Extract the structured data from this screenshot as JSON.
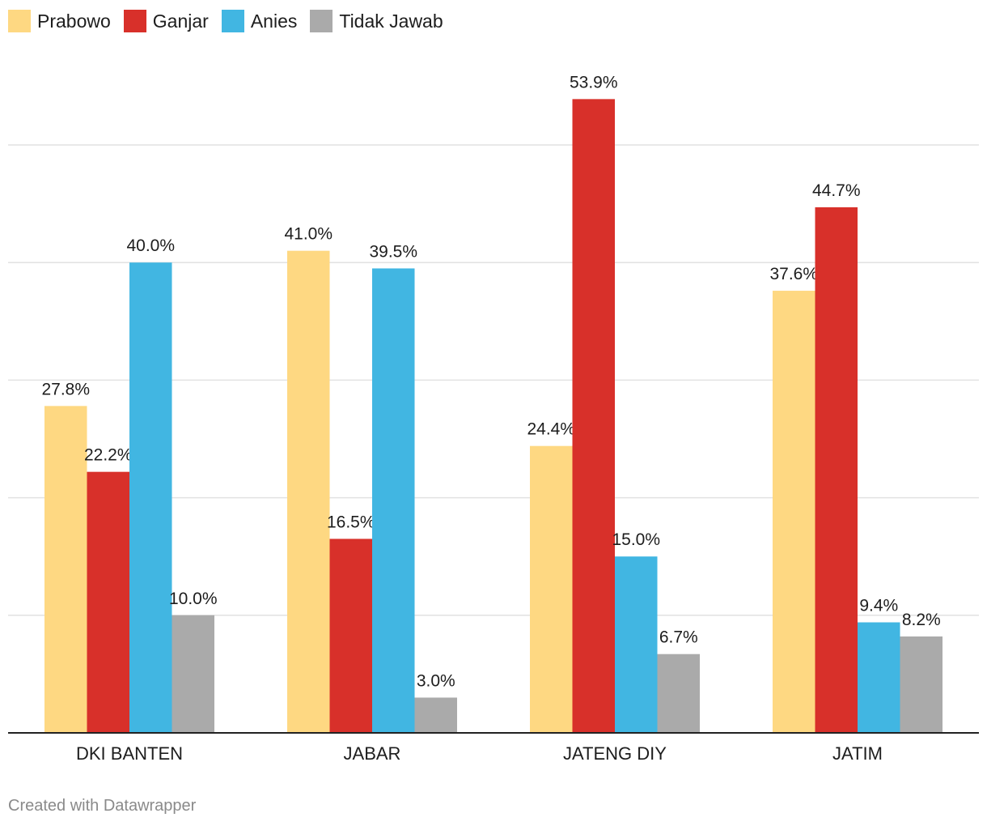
{
  "legend": {
    "items": [
      {
        "label": "Prabowo",
        "color": "#fed882"
      },
      {
        "label": "Ganjar",
        "color": "#d8302a"
      },
      {
        "label": "Anies",
        "color": "#41b6e2"
      },
      {
        "label": "Tidak Jawab",
        "color": "#aaaaaa"
      }
    ]
  },
  "chart_data": {
    "type": "bar",
    "categories": [
      "DKI BANTEN",
      "JABAR",
      "JATENG DIY",
      "JATIM"
    ],
    "series": [
      {
        "name": "Prabowo",
        "color": "#fed882",
        "values": [
          27.8,
          41.0,
          24.4,
          37.6
        ],
        "labels": [
          "27.8%",
          "41.0%",
          "24.4%",
          "37.6%"
        ]
      },
      {
        "name": "Ganjar",
        "color": "#d8302a",
        "values": [
          22.2,
          16.5,
          53.9,
          44.7
        ],
        "labels": [
          "22.2%",
          "16.5%",
          "53.9%",
          "44.7%"
        ]
      },
      {
        "name": "Anies",
        "color": "#41b6e2",
        "values": [
          40.0,
          39.5,
          15.0,
          9.4
        ],
        "labels": [
          "40.0%",
          "39.5%",
          "15.0%",
          "9.4%"
        ]
      },
      {
        "name": "Tidak Jawab",
        "color": "#aaaaaa",
        "values": [
          10.0,
          3.0,
          6.7,
          8.2
        ],
        "labels": [
          "10.0%",
          "3.0%",
          "6.7%",
          "8.2%"
        ]
      }
    ],
    "ylim": [
      0,
      60
    ],
    "gridlines": [
      10,
      20,
      30,
      40,
      50
    ],
    "grid": true,
    "legend_position": "top-left"
  },
  "footer": {
    "credit": "Created with Datawrapper"
  }
}
